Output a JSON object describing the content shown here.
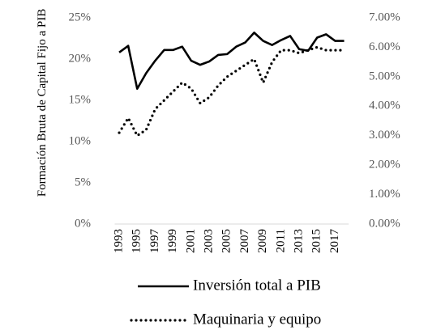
{
  "chart_data": {
    "type": "line",
    "y_label": "Formación Bruta de Capital Fijo a PIB",
    "categories": [
      "1993",
      null,
      "1995",
      null,
      "1997",
      null,
      "1999",
      null,
      "2001",
      null,
      "2003",
      null,
      "2005",
      null,
      "2007",
      null,
      "2009",
      null,
      "2011",
      null,
      "2013",
      null,
      "2015",
      null,
      "2017",
      null
    ],
    "series": [
      {
        "name": "Inversión total a PIB",
        "color": "#000000",
        "linestyle": "solid",
        "values": [
          20.8,
          21.6,
          16.4,
          18.3,
          19.8,
          21.1,
          21.1,
          21.5,
          19.8,
          19.3,
          19.7,
          20.5,
          20.6,
          21.5,
          22.0,
          23.2,
          22.2,
          21.7,
          22.3,
          22.8,
          21.2,
          21.0,
          22.6,
          23.0,
          22.2,
          22.2
        ]
      },
      {
        "name": "Maquinaria y equipo",
        "color": "#000000",
        "linestyle": "dotted",
        "axis": "y2",
        "values": [
          3.1,
          3.6,
          3.0,
          3.2,
          3.9,
          4.2,
          4.5,
          4.8,
          4.6,
          4.1,
          4.3,
          4.7,
          5.0,
          5.2,
          5.4,
          5.6,
          4.8,
          5.5,
          5.9,
          5.9,
          5.8,
          5.9,
          6.0,
          5.9,
          5.9,
          5.9
        ]
      }
    ],
    "ylim": [
      0,
      25
    ],
    "yticks": [
      {
        "value": 0,
        "label": "0%"
      },
      {
        "value": 5,
        "label": "5%"
      },
      {
        "value": 10,
        "label": "10%"
      },
      {
        "value": 15,
        "label": "15%"
      },
      {
        "value": 20,
        "label": "20%"
      },
      {
        "value": 25,
        "label": "25%"
      }
    ],
    "y2lim": [
      0,
      7
    ],
    "y2ticks": [
      {
        "value": 0,
        "label": "0.00%"
      },
      {
        "value": 1,
        "label": "1.00%"
      },
      {
        "value": 2,
        "label": "2.00%"
      },
      {
        "value": 3,
        "label": "3.00%"
      },
      {
        "value": 4,
        "label": "4.00%"
      },
      {
        "value": 5,
        "label": "5.00%"
      },
      {
        "value": 6,
        "label": "6.00%"
      },
      {
        "value": 7,
        "label": "7.00%"
      }
    ],
    "grid": false
  }
}
